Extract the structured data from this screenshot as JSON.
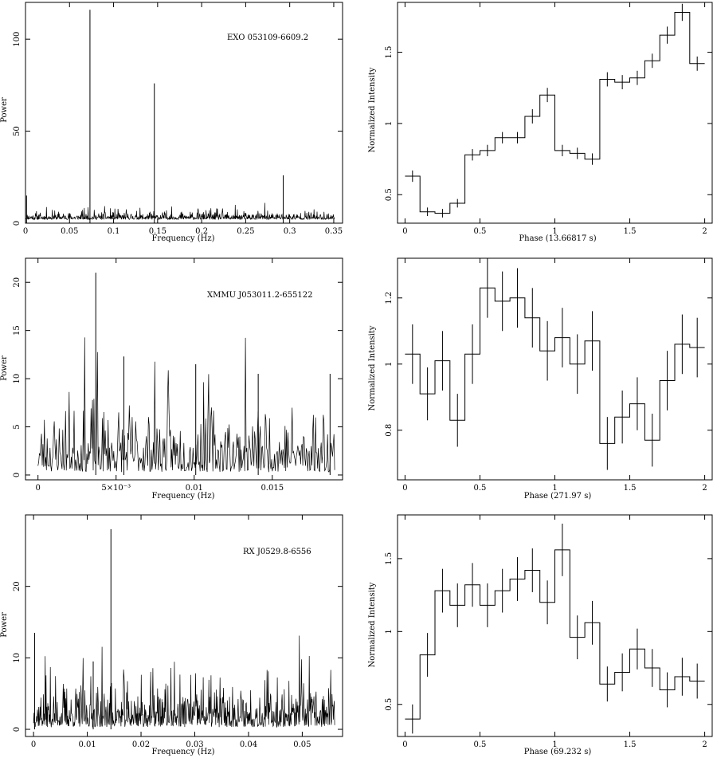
{
  "figure": {
    "background": "#ffffff",
    "ink": "#000000"
  },
  "chart_data": [
    {
      "id": "p1",
      "type": "line",
      "title": "",
      "annotation": "EXO 053109-6609.2",
      "xlabel": "Frequency (Hz)",
      "ylabel": "Power",
      "xlim": [
        0,
        0.36
      ],
      "ylim": [
        0,
        120
      ],
      "xticks": [
        0,
        0.05,
        0.1,
        0.15,
        0.2,
        0.25,
        0.3,
        0.35
      ],
      "xticklabels": [
        "0",
        "0.05",
        "0.1",
        "0.15",
        "0.2",
        "0.25",
        "0.3",
        "0.35"
      ],
      "yticks": [
        0,
        50,
        100
      ],
      "yticklabels": [
        "0",
        "50",
        "100"
      ],
      "noise": {
        "base": 2.0,
        "amp": 4.0,
        "n": 900,
        "seed": 11
      },
      "peaks": [
        {
          "x": 0.0012,
          "y": 15
        },
        {
          "x": 0.0732,
          "y": 116
        },
        {
          "x": 0.1463,
          "y": 76
        },
        {
          "x": 0.2926,
          "y": 26
        }
      ]
    },
    {
      "id": "p2",
      "type": "step",
      "title": "",
      "xlabel": "Phase (13.66817 s)",
      "ylabel": "Normalized Intensity",
      "xlim": [
        -0.05,
        2.05
      ],
      "ylim": [
        0.3,
        1.85
      ],
      "xticks": [
        0,
        0.5,
        1,
        1.5,
        2
      ],
      "xticklabels": [
        "0",
        "0.5",
        "1",
        "1.5",
        "2"
      ],
      "yticks": [
        0.5,
        1,
        1.5
      ],
      "yticklabels": [
        "0.5",
        "1",
        "1.5"
      ],
      "nbins": 20,
      "values": [
        0.63,
        0.38,
        0.37,
        0.44,
        0.78,
        0.81,
        0.9,
        0.9,
        1.05,
        1.2,
        0.81,
        0.79,
        0.75,
        1.31,
        1.29,
        1.32,
        1.44,
        1.62,
        1.78,
        1.42
      ],
      "errors": [
        0.04,
        0.03,
        0.03,
        0.03,
        0.04,
        0.04,
        0.04,
        0.04,
        0.05,
        0.05,
        0.04,
        0.04,
        0.04,
        0.05,
        0.05,
        0.05,
        0.05,
        0.06,
        0.06,
        0.05
      ]
    },
    {
      "id": "p3",
      "type": "line",
      "title": "",
      "annotation": "XMMU J053011.2-655122",
      "xlabel": "Frequency (Hz)",
      "ylabel": "Power",
      "xlim": [
        -0.0008,
        0.0195
      ],
      "ylim": [
        -0.5,
        22.5
      ],
      "xticks": [
        0,
        0.005,
        0.01,
        0.015
      ],
      "xticklabels": [
        "0",
        "5×10⁻³",
        "0.01",
        "0.015"
      ],
      "yticks": [
        0,
        5,
        10,
        15,
        20
      ],
      "yticklabels": [
        "0",
        "5",
        "10",
        "15",
        "20"
      ],
      "noise": {
        "base": 0.3,
        "amp": 7.0,
        "n": 420,
        "seed": 23
      },
      "peaks": [
        {
          "x": 0.0037,
          "y": 21
        },
        {
          "x": 0.0055,
          "y": 12.3
        },
        {
          "x": 0.0101,
          "y": 11.5
        },
        {
          "x": 0.0141,
          "y": 10.5
        },
        {
          "x": 0.0187,
          "y": 10.5
        }
      ]
    },
    {
      "id": "p4",
      "type": "step",
      "title": "",
      "xlabel": "Phase (271.97 s)",
      "ylabel": "Normalized Intensity",
      "xlim": [
        -0.05,
        2.05
      ],
      "ylim": [
        0.65,
        1.32
      ],
      "xticks": [
        0,
        0.5,
        1,
        1.5,
        2
      ],
      "xticklabels": [
        "0",
        "0.5",
        "1",
        "1.5",
        "2"
      ],
      "yticks": [
        0.8,
        1,
        1.2
      ],
      "yticklabels": [
        "0.8",
        "1",
        "1.2"
      ],
      "nbins": 20,
      "values": [
        1.03,
        0.91,
        1.01,
        0.83,
        1.03,
        1.23,
        1.19,
        1.2,
        1.14,
        1.04,
        1.08,
        1.0,
        1.07,
        0.76,
        0.84,
        0.88,
        0.77,
        0.95,
        1.06,
        1.05
      ],
      "errors": [
        0.09,
        0.08,
        0.09,
        0.08,
        0.09,
        0.09,
        0.09,
        0.09,
        0.09,
        0.09,
        0.09,
        0.09,
        0.09,
        0.08,
        0.08,
        0.08,
        0.08,
        0.09,
        0.09,
        0.09
      ]
    },
    {
      "id": "p5",
      "type": "line",
      "title": "",
      "annotation": "RX J0529.8-6556",
      "xlabel": "Frequency (Hz)",
      "ylabel": "Power",
      "xlim": [
        -0.0015,
        0.0575
      ],
      "ylim": [
        -1,
        30
      ],
      "xticks": [
        0,
        0.01,
        0.02,
        0.03,
        0.04,
        0.05
      ],
      "xticklabels": [
        "0",
        "0.01",
        "0.02",
        "0.03",
        "0.04",
        "0.05"
      ],
      "yticks": [
        0,
        10,
        20
      ],
      "yticklabels": [
        "0",
        "10",
        "20"
      ],
      "noise": {
        "base": 0.3,
        "amp": 6.0,
        "n": 700,
        "seed": 37
      },
      "peaks": [
        {
          "x": 0.0002,
          "y": 13.5
        },
        {
          "x": 0.0111,
          "y": 9.5
        },
        {
          "x": 0.0144,
          "y": 28
        }
      ]
    },
    {
      "id": "p6",
      "type": "step",
      "title": "",
      "xlabel": "Phase (69.232 s)",
      "ylabel": "Normalized Intensity",
      "xlim": [
        -0.05,
        2.05
      ],
      "ylim": [
        0.28,
        1.8
      ],
      "xticks": [
        0,
        0.5,
        1,
        1.5,
        2
      ],
      "xticklabels": [
        "0",
        "0.5",
        "1",
        "1.5",
        "2"
      ],
      "yticks": [
        0.5,
        1,
        1.5
      ],
      "yticklabels": [
        "0.5",
        "1",
        "1.5"
      ],
      "nbins": 20,
      "values": [
        0.4,
        0.84,
        1.28,
        1.18,
        1.32,
        1.18,
        1.28,
        1.36,
        1.42,
        1.2,
        1.56,
        0.96,
        1.06,
        0.64,
        0.72,
        0.88,
        0.75,
        0.6,
        0.69,
        0.66
      ],
      "errors": [
        0.1,
        0.15,
        0.15,
        0.15,
        0.15,
        0.15,
        0.15,
        0.15,
        0.15,
        0.15,
        0.18,
        0.15,
        0.15,
        0.12,
        0.13,
        0.14,
        0.13,
        0.12,
        0.13,
        0.12
      ]
    }
  ]
}
